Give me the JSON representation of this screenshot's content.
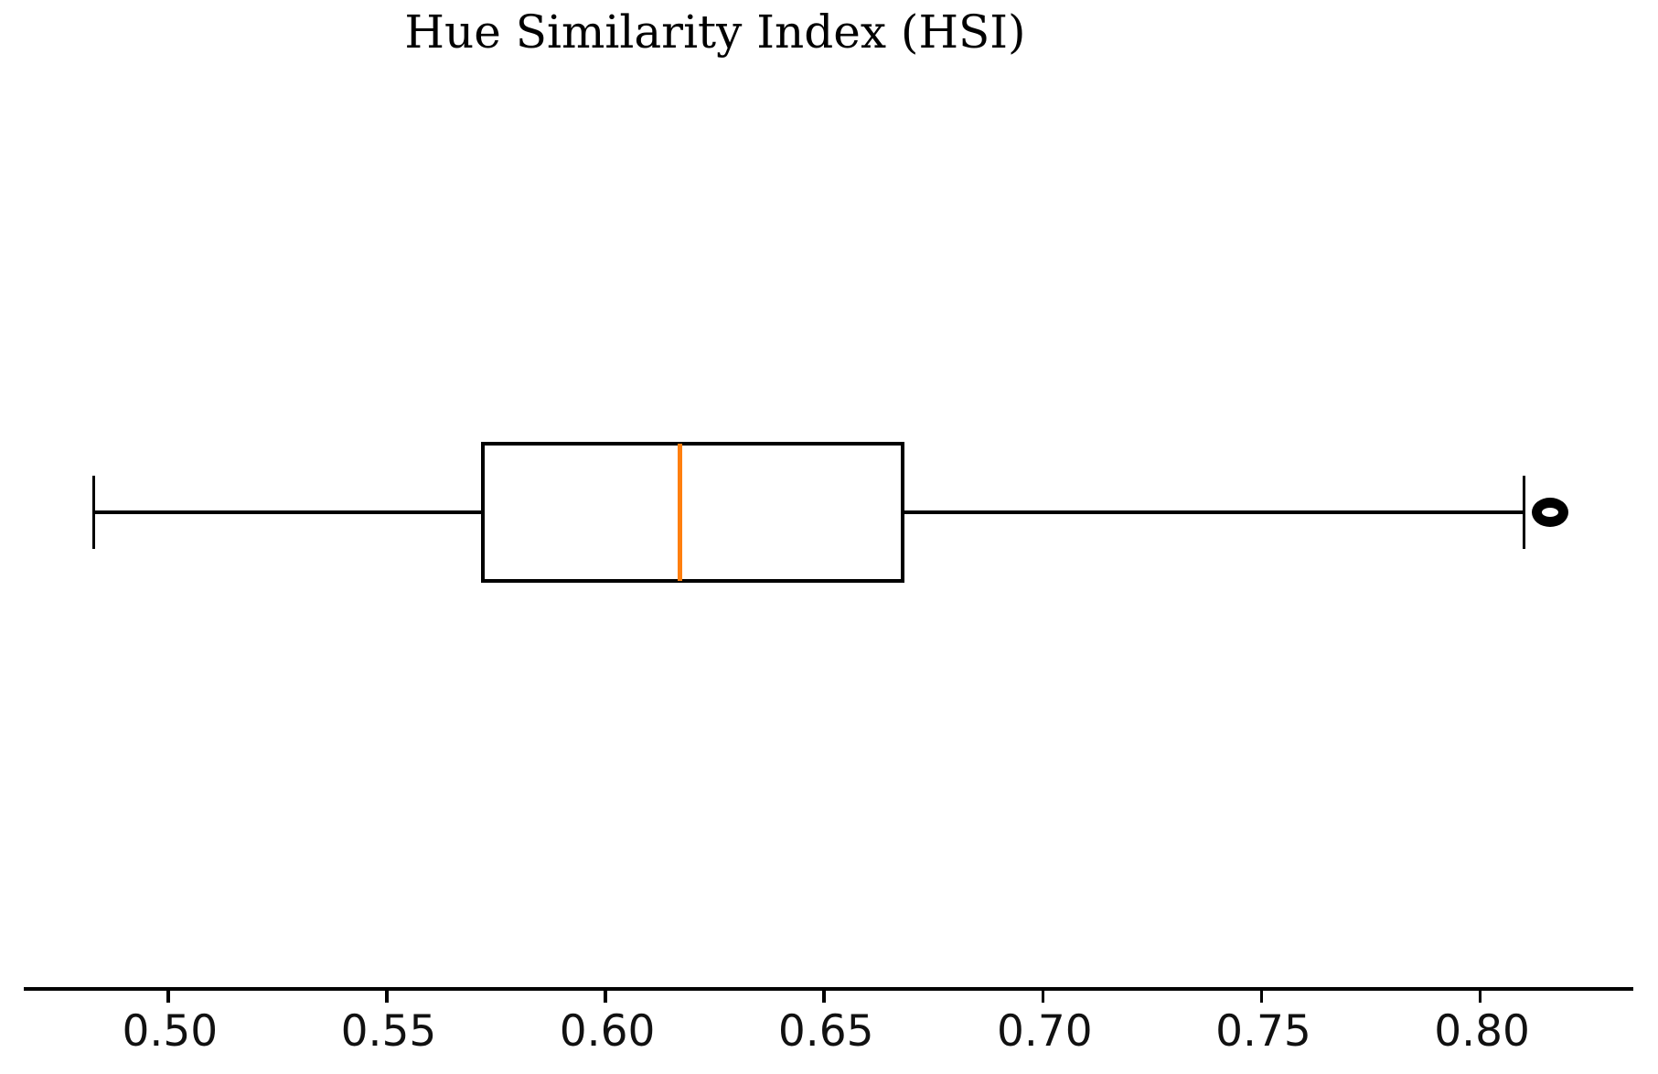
{
  "chart_data": {
    "type": "box",
    "orientation": "horizontal",
    "title": "Hue Similarity Index (HSI)",
    "series": [
      {
        "name": "HSI",
        "whisker_low": 0.483,
        "q1": 0.572,
        "median": 0.617,
        "q3": 0.668,
        "whisker_high": 0.81,
        "outliers": [
          0.816
        ]
      }
    ],
    "xlabel": "",
    "ylabel": "",
    "xlim": [
      0.467,
      0.835
    ],
    "xticks": {
      "values": [
        0.5,
        0.55,
        0.6,
        0.65,
        0.7,
        0.75,
        0.8
      ],
      "labels": [
        "0.50",
        "0.55",
        "0.60",
        "0.65",
        "0.70",
        "0.75",
        "0.80"
      ]
    },
    "grid": false,
    "legend": null,
    "colors": {
      "box_edge": "#000000",
      "median": "#ff7f0e",
      "whisker": "#000000",
      "outlier_edge": "#000000",
      "tick_label": "#111111",
      "background": "#ffffff"
    }
  }
}
